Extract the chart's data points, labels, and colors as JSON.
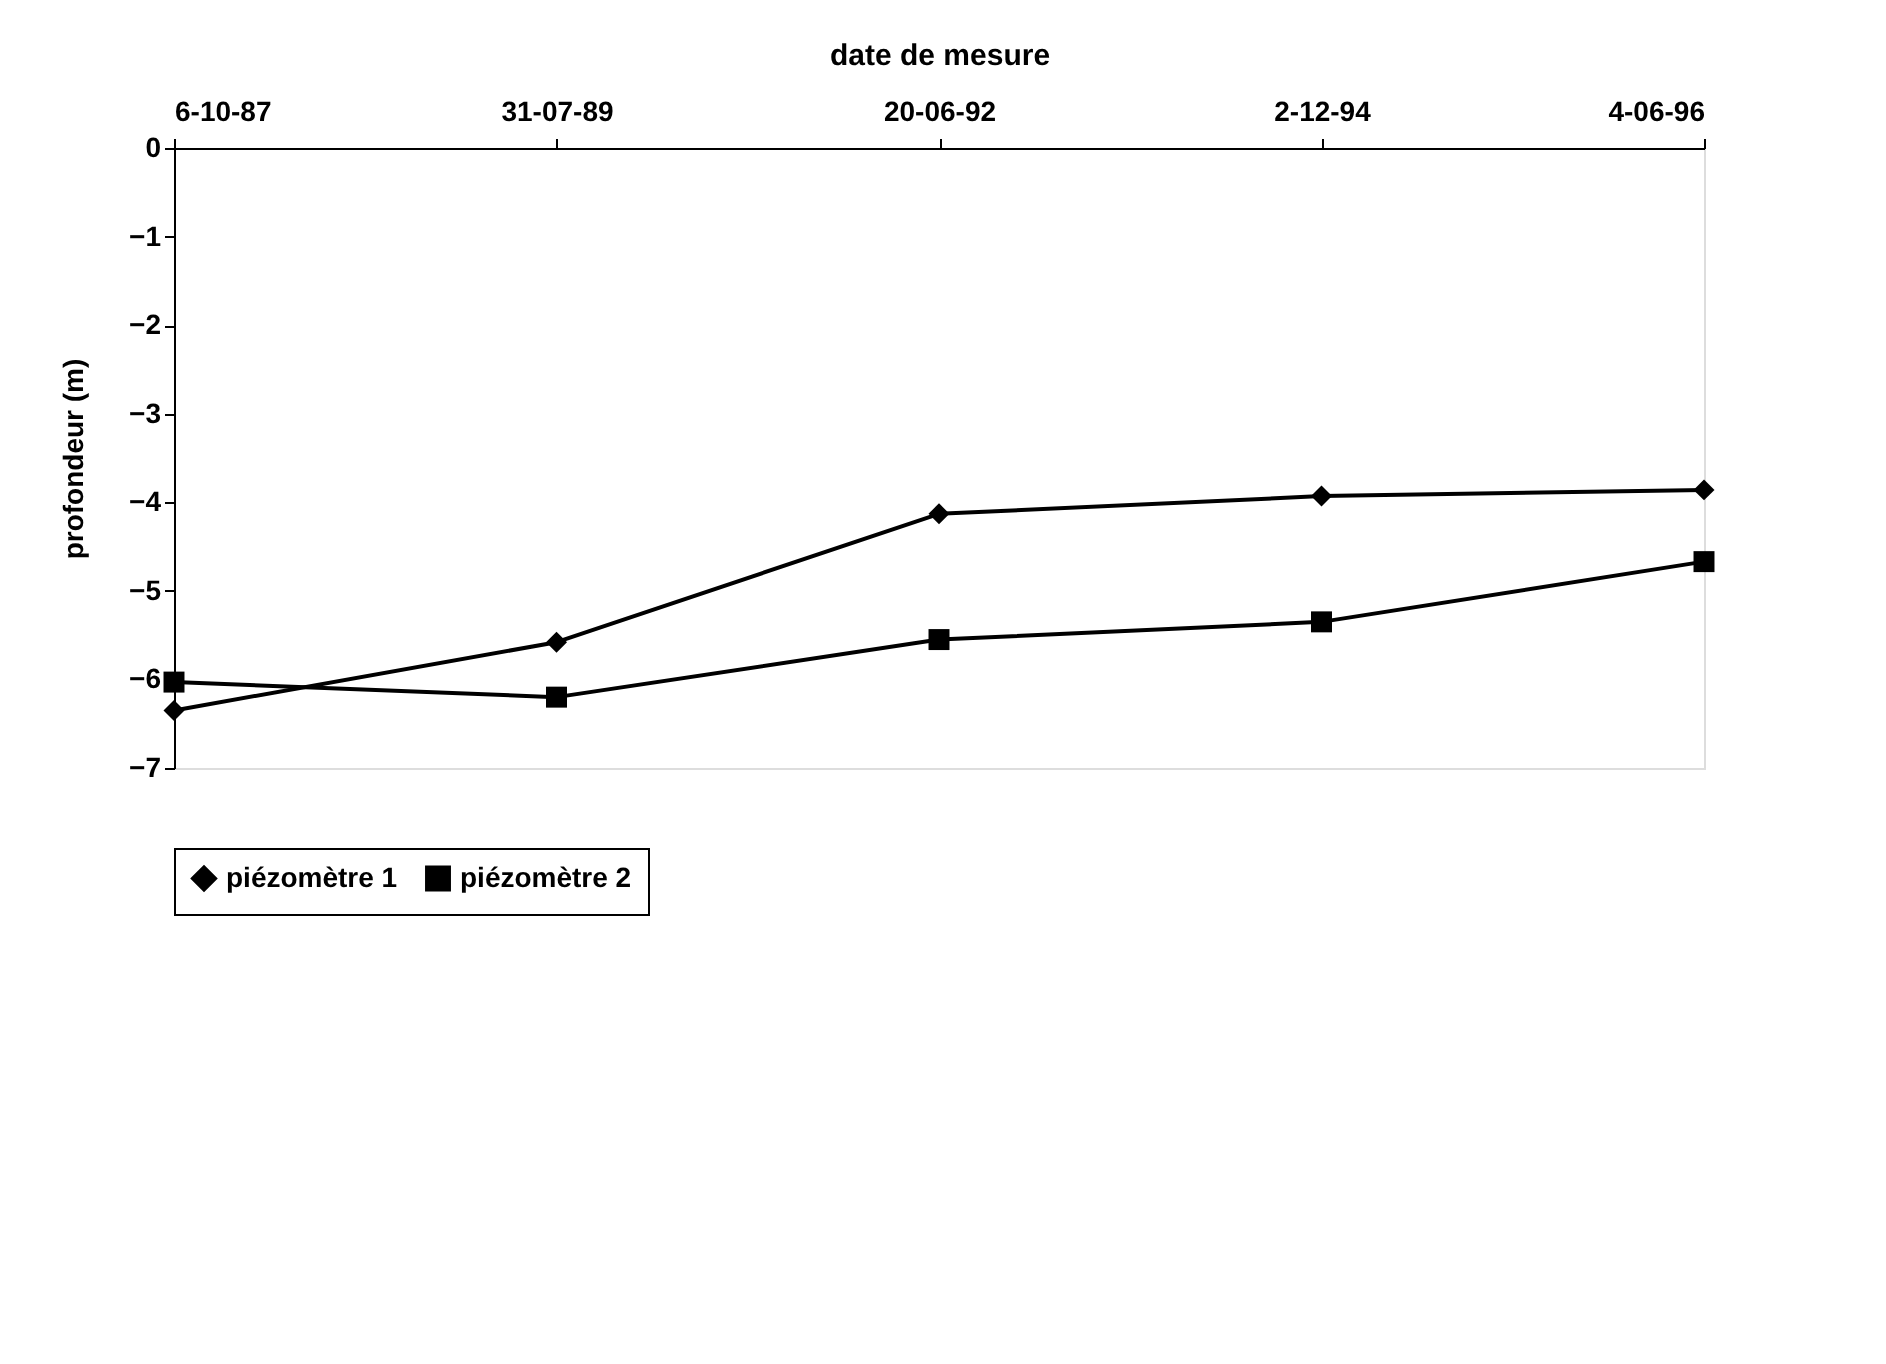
{
  "chart_data": {
    "type": "line",
    "xlabel": "date de mesure",
    "ylabel": "profondeur (m)",
    "categories": [
      "6-10-87",
      "31-07-89",
      "20-06-92",
      "2-12-94",
      "4-06-96"
    ],
    "series": [
      {
        "name": "piézomètre 1",
        "color": "#000000",
        "marker": "diamond",
        "values": [
          -6.35,
          -5.58,
          -4.13,
          -3.93,
          -3.86
        ]
      },
      {
        "name": "piézomètre 2",
        "color": "#000000",
        "marker": "square",
        "values": [
          -6.03,
          -6.2,
          -5.55,
          -5.35,
          -4.67
        ]
      }
    ],
    "ylim": [
      -7,
      0
    ],
    "yticks": [
      -7,
      -6,
      -5,
      -4,
      -3,
      -2,
      -1,
      0
    ],
    "grid": false,
    "legend": "bottom",
    "line_style": "solid"
  }
}
